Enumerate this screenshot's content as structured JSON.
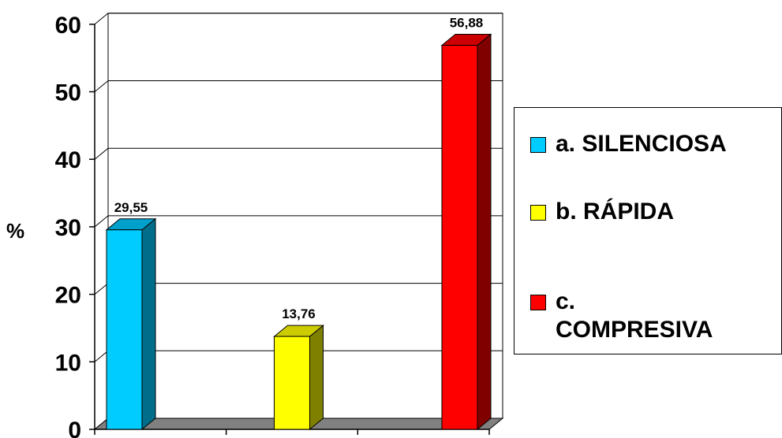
{
  "chart_data": {
    "type": "bar",
    "categories": [
      "a. SILENCIOSA",
      "b. RÁPIDA",
      "c. COMPRESIVA"
    ],
    "series": [
      {
        "values": [
          29.55,
          13.76,
          56.88
        ]
      }
    ],
    "data_labels": [
      "29,55",
      "13,76",
      "56,88"
    ],
    "ylabel": "%",
    "ylim": [
      0,
      60
    ],
    "yticks": [
      "0",
      "10",
      "20",
      "30",
      "40",
      "50",
      "60"
    ],
    "grid": true,
    "three_d": true,
    "legend_position": "right",
    "colors": {
      "front": [
        "#00ccff",
        "#ffff00",
        "#ff0000"
      ],
      "side": [
        "#006e8a",
        "#808000",
        "#800000"
      ],
      "top": [
        "#00a0cc",
        "#cccc00",
        "#cc0000"
      ],
      "floor": "#808080"
    }
  },
  "legend": {
    "items": [
      {
        "lines": [
          "a. SILENCIOSA"
        ]
      },
      {
        "lines": [
          "b. RÁPIDA"
        ]
      },
      {
        "lines": [
          "c.",
          "COMPRESIVA"
        ]
      }
    ]
  }
}
